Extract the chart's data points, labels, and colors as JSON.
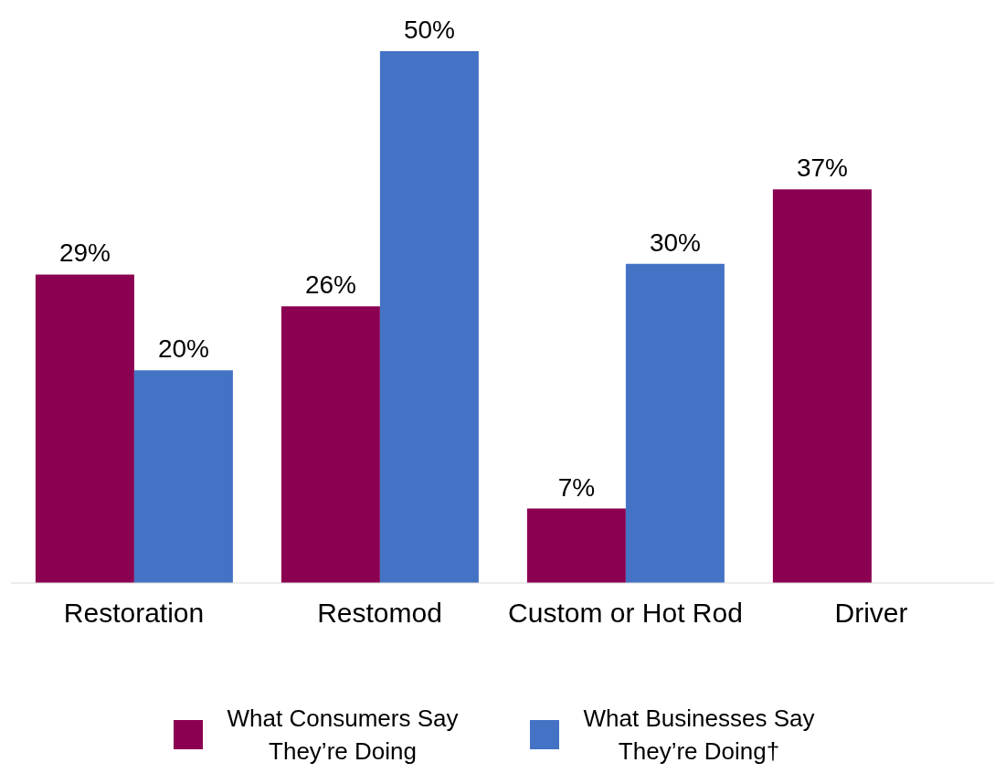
{
  "chart_data": {
    "type": "bar",
    "categories": [
      "Restoration",
      "Restomod",
      "Custom or Hot Rod",
      "Driver"
    ],
    "series": [
      {
        "name": "What Consumers Say They’re Doing",
        "color": "#8b0051",
        "values": [
          29,
          26,
          7,
          37
        ],
        "value_labels": [
          "29%",
          "26%",
          "7%",
          "37%"
        ]
      },
      {
        "name": "What Businesses Say They’re Doing†",
        "color": "#4472c4",
        "values": [
          20,
          50,
          30,
          null
        ],
        "value_labels": [
          "20%",
          "50%",
          "30%",
          null
        ]
      }
    ],
    "legend": "bottom"
  }
}
